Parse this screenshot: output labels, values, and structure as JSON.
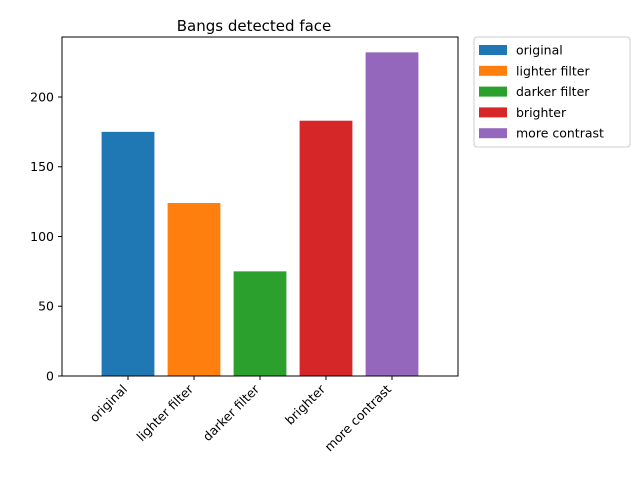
{
  "chart_data": {
    "type": "bar",
    "title": "Bangs detected face",
    "xlabel": "",
    "ylabel": "",
    "categories": [
      "original",
      "lighter filter",
      "darker filter",
      "brighter",
      "more contrast"
    ],
    "values": [
      175,
      124,
      75,
      183,
      232
    ],
    "colors": [
      "#1f77b4",
      "#ff7f0e",
      "#2ca02c",
      "#d62728",
      "#9467bd"
    ],
    "ylim": [
      0,
      243
    ],
    "yticks": [
      0,
      50,
      100,
      150,
      200
    ],
    "grid": false,
    "legend": {
      "placement": "outside-top-right",
      "entries": [
        "original",
        "lighter filter",
        "darker filter",
        "brighter",
        "more contrast"
      ]
    }
  }
}
